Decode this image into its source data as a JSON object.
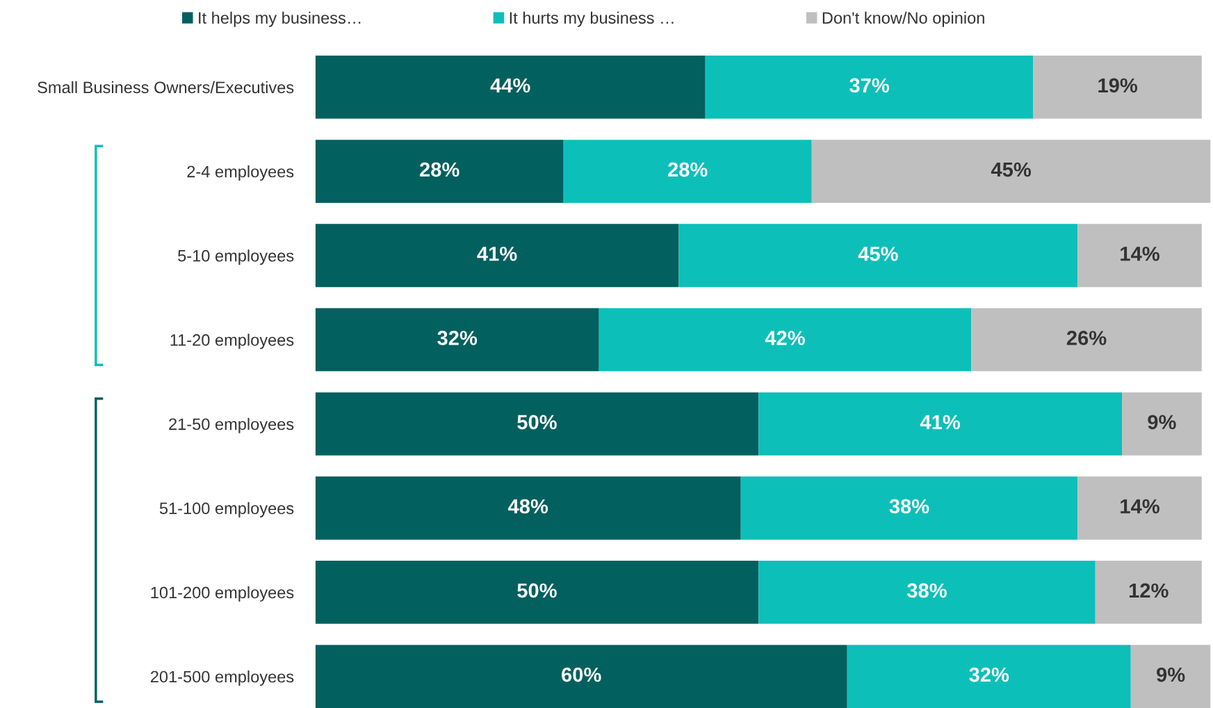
{
  "chart_data": {
    "type": "bar",
    "orientation": "horizontal",
    "stacked": true,
    "legend": "top",
    "grid": false,
    "categories": [
      "Small Business Owners/Executives",
      "2-4 employees",
      "5-10 employees",
      "11-20 employees",
      "21-50 employees",
      "51-100 employees",
      "101-200 employees",
      "201-500 employees"
    ],
    "series": [
      {
        "name": "It helps my business…",
        "color": "#02605e",
        "values": [
          44,
          28,
          41,
          32,
          50,
          48,
          50,
          60
        ],
        "value_labels": [
          "44%",
          "28%",
          "41%",
          "32%",
          "50%",
          "48%",
          "50%",
          "60%"
        ]
      },
      {
        "name": "It hurts my business …",
        "color": "#0dbfb9",
        "values": [
          37,
          28,
          45,
          42,
          41,
          38,
          38,
          32
        ],
        "value_labels": [
          "37%",
          "28%",
          "45%",
          "42%",
          "41%",
          "38%",
          "38%",
          "32%"
        ]
      },
      {
        "name": "Don't know/No opinion",
        "color": "#bfbfbf",
        "values": [
          19,
          45,
          14,
          26,
          9,
          14,
          12,
          9
        ],
        "value_labels": [
          "19%",
          "45%",
          "14%",
          "26%",
          "9%",
          "14%",
          "12%",
          "9%"
        ]
      }
    ]
  }
}
